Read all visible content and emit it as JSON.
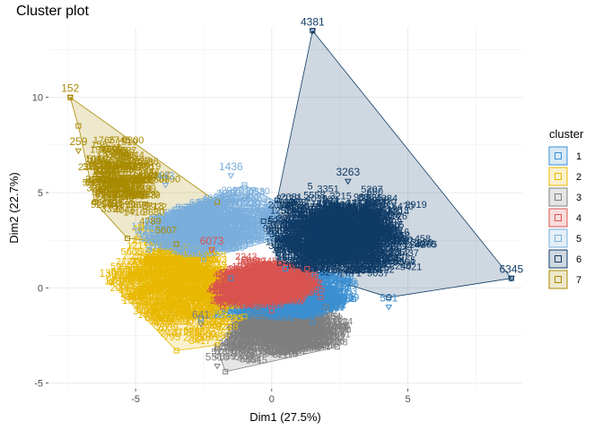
{
  "chart_data": {
    "type": "scatter",
    "title": "Cluster plot",
    "xlabel": "Dim1 (27.5%)",
    "ylabel": "Dim2 (22.7%)",
    "xlim": [
      -8.2,
      9.2
    ],
    "ylim": [
      -5.3,
      13.7
    ],
    "x_ticks": [
      -5,
      0,
      5
    ],
    "y_ticks": [
      -5,
      0,
      5,
      10
    ],
    "grid": true,
    "legend_title": "cluster",
    "legend_position": "right",
    "series": [
      {
        "name": "1",
        "color": "#3b8fd1",
        "hull": [
          [
            -2.6,
            -1.6
          ],
          [
            1.5,
            -1.8
          ],
          [
            3.0,
            -0.6
          ],
          [
            2.8,
            0.5
          ],
          [
            0.5,
            1.0
          ],
          [
            -1.5,
            0.5
          ]
        ],
        "center": [
          0.8,
          -0.5
        ],
        "spread": [
          1.4,
          0.7
        ]
      },
      {
        "name": "2",
        "color": "#e8b800",
        "hull": [
          [
            -5.9,
            0.3
          ],
          [
            -4.8,
            3.2
          ],
          [
            -2.2,
            2.0
          ],
          [
            -1.0,
            -1.5
          ],
          [
            -2.0,
            -3.0
          ],
          [
            -3.5,
            -3.3
          ]
        ],
        "center": [
          -3.3,
          0.2
        ],
        "spread": [
          1.1,
          1.3
        ]
      },
      {
        "name": "3",
        "color": "#7f7f7f",
        "hull": [
          [
            -2.0,
            -3.2
          ],
          [
            -1.7,
            -4.4
          ],
          [
            2.4,
            -3.1
          ],
          [
            2.8,
            -2.2
          ],
          [
            2.0,
            -1.0
          ],
          [
            -0.5,
            -1.0
          ]
        ],
        "center": [
          0.3,
          -2.3
        ],
        "spread": [
          1.2,
          0.7
        ]
      },
      {
        "name": "4",
        "color": "#d9534f",
        "hull": [
          [
            -2.2,
            0.0
          ],
          [
            -1.0,
            1.5
          ],
          [
            1.3,
            1.0
          ],
          [
            1.8,
            -0.5
          ],
          [
            0.0,
            -1.2
          ],
          [
            -1.8,
            -1.0
          ]
        ],
        "center": [
          -0.2,
          0.0
        ],
        "spread": [
          0.9,
          0.6
        ]
      },
      {
        "name": "5",
        "color": "#7aaedc",
        "hull": [
          [
            -4.9,
            3.0
          ],
          [
            -1.0,
            5.4
          ],
          [
            0.2,
            4.5
          ],
          [
            0.0,
            2.5
          ],
          [
            -2.5,
            1.5
          ],
          [
            -4.5,
            2.0
          ]
        ],
        "center": [
          -2.3,
          3.2
        ],
        "spread": [
          1.2,
          0.9
        ]
      },
      {
        "name": "6",
        "color": "#0f3b66",
        "hull": [
          [
            1.5,
            13.5
          ],
          [
            8.8,
            0.5
          ],
          [
            4.3,
            -0.5
          ],
          [
            0.3,
            1.3
          ],
          [
            -0.3,
            3.5
          ],
          [
            0.2,
            4.6
          ]
        ],
        "center": [
          2.5,
          2.6
        ],
        "spread": [
          1.1,
          0.9
        ]
      },
      {
        "name": "7",
        "color": "#a88a00",
        "hull": [
          [
            -7.4,
            10.0
          ],
          [
            -2.0,
            4.5
          ],
          [
            -3.5,
            2.3
          ],
          [
            -5.3,
            2.6
          ],
          [
            -6.5,
            4.5
          ],
          [
            -7.1,
            8.5
          ]
        ],
        "center": [
          -5.6,
          5.5
        ],
        "spread": [
          0.7,
          1.0
        ]
      }
    ],
    "point_labels": [
      {
        "text": "4381",
        "x": 1.5,
        "y": 13.5,
        "cluster": "6"
      },
      {
        "text": "6345",
        "x": 8.8,
        "y": 0.5,
        "cluster": "6"
      },
      {
        "text": "3263",
        "x": 2.8,
        "y": 5.6,
        "cluster": "6"
      },
      {
        "text": "3208",
        "x": 3.9,
        "y": 4.1,
        "cluster": "6"
      },
      {
        "text": "3238",
        "x": 0.6,
        "y": 4.2,
        "cluster": "6"
      },
      {
        "text": "2934",
        "x": 4.3,
        "y": 3.3,
        "cluster": "6"
      },
      {
        "text": "152",
        "x": -7.4,
        "y": 10.0,
        "cluster": "7"
      },
      {
        "text": "259",
        "x": -7.1,
        "y": 7.2,
        "cluster": "7"
      },
      {
        "text": "1320",
        "x": -6.0,
        "y": 6.4,
        "cluster": "7"
      },
      {
        "text": "1436",
        "x": -1.5,
        "y": 5.9,
        "cluster": "5"
      },
      {
        "text": "2917",
        "x": -1.0,
        "y": 4.6,
        "cluster": "5"
      },
      {
        "text": "2287",
        "x": -1.7,
        "y": 4.3,
        "cluster": "5"
      },
      {
        "text": "443",
        "x": -3.9,
        "y": 5.4,
        "cluster": "5"
      },
      {
        "text": "6073",
        "x": -2.2,
        "y": 2.0,
        "cluster": "4"
      },
      {
        "text": "157",
        "x": -3.6,
        "y": 0.9,
        "cluster": "2"
      },
      {
        "text": "1300",
        "x": -5.9,
        "y": 0.3,
        "cluster": "2"
      },
      {
        "text": "641",
        "x": -2.6,
        "y": -1.9,
        "cluster": "3"
      },
      {
        "text": "5510",
        "x": -2.0,
        "y": -4.1,
        "cluster": "3"
      },
      {
        "text": "26",
        "x": 2.6,
        "y": -2.3,
        "cluster": "3"
      },
      {
        "text": "531",
        "x": 4.3,
        "y": -1.0,
        "cluster": "1"
      }
    ]
  }
}
